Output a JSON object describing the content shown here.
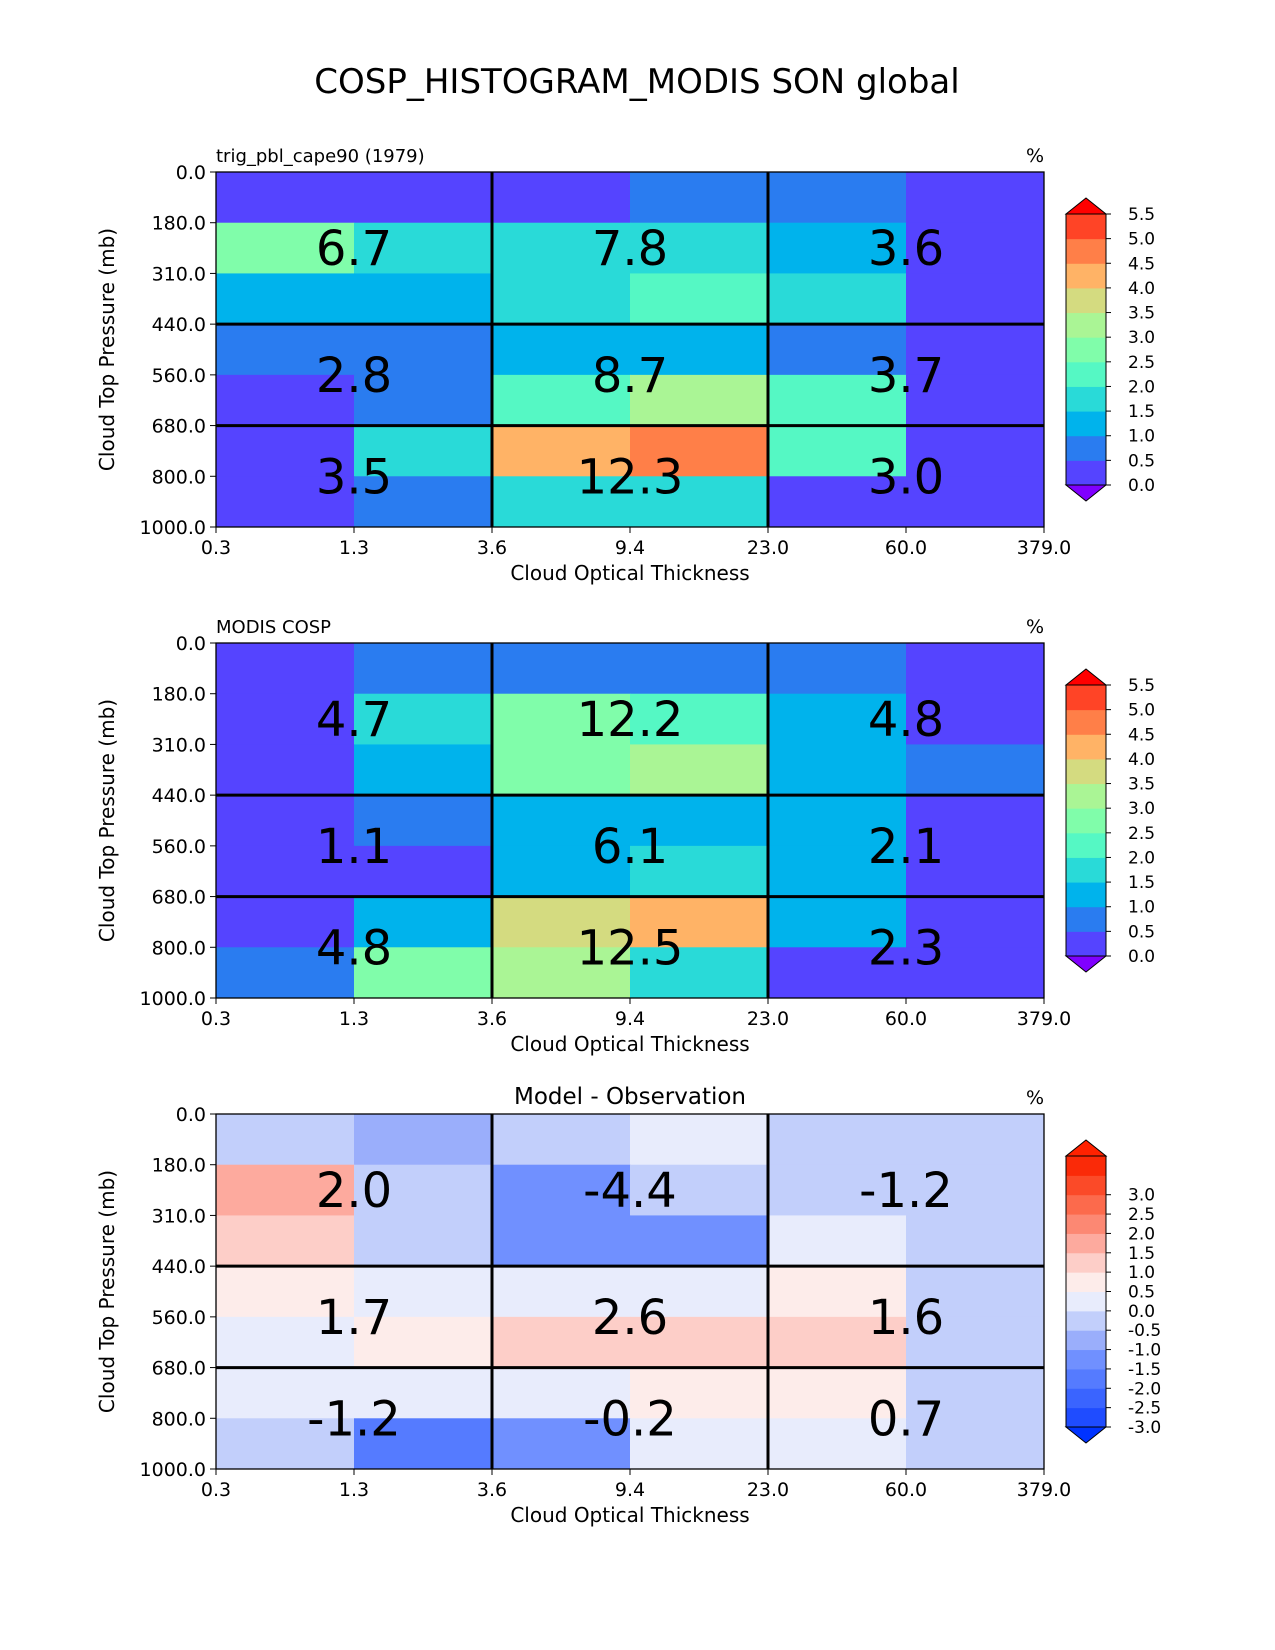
{
  "figure_title": "COSP_HISTOGRAM_MODIS SON global",
  "chart_data": [
    {
      "type": "heatmap",
      "title": "trig_pbl_cape90 (1979)",
      "units": "%",
      "xlabel": "Cloud Optical Thickness",
      "ylabel": "Cloud Top Pressure (mb)",
      "xticks": [
        "0.3",
        "1.3",
        "3.6",
        "9.4",
        "23.0",
        "60.0",
        "379.0"
      ],
      "yticks": [
        "0.0",
        "180.0",
        "310.0",
        "440.0",
        "560.0",
        "680.0",
        "800.0",
        "1000.0"
      ],
      "colorbar": {
        "ticks": [
          "0.0",
          "0.5",
          "1.0",
          "1.5",
          "2.0",
          "2.5",
          "3.0",
          "3.5",
          "4.0",
          "4.5",
          "5.0",
          "5.5"
        ],
        "colors": [
          "#5544ff",
          "#2a7cf0",
          "#00b3ec",
          "#29dad8",
          "#55f8c4",
          "#80fdaa",
          "#aaf595",
          "#d4db80",
          "#ffb366",
          "#ff7f48",
          "#ff4426"
        ],
        "under": "#8000ff",
        "over": "#ff0000"
      },
      "values": [
        [
          0.2,
          0.2,
          0.3,
          0.8,
          0.8,
          0.3
        ],
        [
          2.5,
          1.7,
          1.8,
          1.8,
          1.4,
          0.3
        ],
        [
          1.3,
          1.3,
          1.7,
          2.2,
          1.8,
          0.3
        ],
        [
          0.8,
          0.8,
          1.4,
          1.4,
          0.8,
          0.3
        ],
        [
          0.2,
          0.8,
          2.3,
          3.1,
          2.2,
          0.3
        ],
        [
          0.2,
          1.8,
          4.3,
          4.8,
          2.3,
          0.3
        ],
        [
          0.2,
          0.8,
          1.8,
          1.8,
          0.3,
          0.3
        ]
      ],
      "box_labels": [
        [
          "6.7",
          "7.8",
          "3.6"
        ],
        [
          "2.8",
          "8.7",
          "3.7"
        ],
        [
          "3.5",
          "12.3",
          "3.0"
        ]
      ]
    },
    {
      "type": "heatmap",
      "title": "MODIS COSP",
      "units": "%",
      "xlabel": "Cloud Optical Thickness",
      "ylabel": "Cloud Top Pressure (mb)",
      "xticks": [
        "0.3",
        "1.3",
        "3.6",
        "9.4",
        "23.0",
        "60.0",
        "379.0"
      ],
      "yticks": [
        "0.0",
        "180.0",
        "310.0",
        "440.0",
        "560.0",
        "680.0",
        "800.0",
        "1000.0"
      ],
      "colorbar": {
        "ticks": [
          "0.0",
          "0.5",
          "1.0",
          "1.5",
          "2.0",
          "2.5",
          "3.0",
          "3.5",
          "4.0",
          "4.5",
          "5.0",
          "5.5"
        ],
        "colors": [
          "#5544ff",
          "#2a7cf0",
          "#00b3ec",
          "#29dad8",
          "#55f8c4",
          "#80fdaa",
          "#aaf595",
          "#d4db80",
          "#ffb366",
          "#ff7f48",
          "#ff4426"
        ],
        "under": "#8000ff",
        "over": "#ff0000"
      },
      "values": [
        [
          0.3,
          0.8,
          0.8,
          0.8,
          0.8,
          0.3
        ],
        [
          0.3,
          1.8,
          2.7,
          2.2,
          1.3,
          0.3
        ],
        [
          0.3,
          1.3,
          2.7,
          3.2,
          1.3,
          0.8
        ],
        [
          0.3,
          0.8,
          1.3,
          1.3,
          1.3,
          0.3
        ],
        [
          0.3,
          0.3,
          1.3,
          1.8,
          1.3,
          0.3
        ],
        [
          0.3,
          1.3,
          3.7,
          4.2,
          1.3,
          0.3
        ],
        [
          0.8,
          2.7,
          3.2,
          1.8,
          0.3,
          0.3
        ]
      ],
      "box_labels": [
        [
          "4.7",
          "12.2",
          "4.8"
        ],
        [
          "1.1",
          "6.1",
          "2.1"
        ],
        [
          "4.8",
          "12.5",
          "2.3"
        ]
      ]
    },
    {
      "type": "heatmap",
      "title": "Model - Observation",
      "units": "%",
      "xlabel": "Cloud Optical Thickness",
      "ylabel": "Cloud Top Pressure (mb)",
      "xticks": [
        "0.3",
        "1.3",
        "3.6",
        "9.4",
        "23.0",
        "60.0",
        "379.0"
      ],
      "yticks": [
        "0.0",
        "180.0",
        "310.0",
        "440.0",
        "560.0",
        "680.0",
        "800.0",
        "1000.0"
      ],
      "colorbar": {
        "ticks": [
          "-3.0",
          "-2.5",
          "-2.0",
          "-1.5",
          "-1.0",
          "-0.5",
          "0.0",
          "0.5",
          "1.0",
          "1.5",
          "2.0",
          "2.5",
          "3.0"
        ],
        "colors": [
          "#1f4cff",
          "#3a64ff",
          "#557bff",
          "#7090ff",
          "#9aaefb",
          "#c2cffb",
          "#e8ecfc",
          "#fdecea",
          "#fdcec8",
          "#fdaa9e",
          "#fc8873",
          "#fc6a4c",
          "#fb4a28",
          "#fa2a08"
        ],
        "under": "#0033ff",
        "over": "#ff2200"
      },
      "values": [
        [
          -0.1,
          -0.7,
          -0.1,
          0.1,
          -0.1,
          -0.1
        ],
        [
          1.7,
          -0.1,
          -1.2,
          -0.1,
          -0.1,
          -0.1
        ],
        [
          1.2,
          -0.1,
          -1.2,
          -1.2,
          0.1,
          -0.1
        ],
        [
          0.7,
          0.1,
          0.1,
          0.1,
          0.7,
          -0.1
        ],
        [
          0.1,
          0.7,
          1.2,
          1.2,
          1.2,
          -0.1
        ],
        [
          0.1,
          0.1,
          0.1,
          0.7,
          0.7,
          -0.1
        ],
        [
          -0.1,
          -1.7,
          -1.2,
          0.1,
          0.1,
          -0.1
        ]
      ],
      "box_labels": [
        [
          "2.0",
          "-4.4",
          "-1.2"
        ],
        [
          "1.7",
          "2.6",
          "1.6"
        ],
        [
          "-1.2",
          "-0.2",
          "0.7"
        ]
      ]
    }
  ]
}
